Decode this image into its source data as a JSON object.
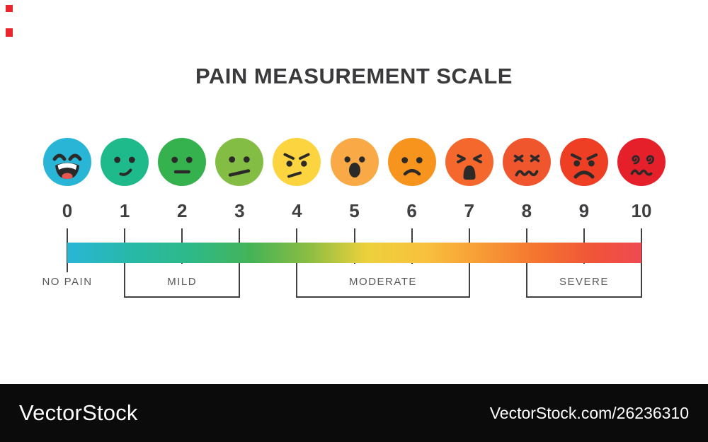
{
  "title": "PAIN MEASUREMENT SCALE",
  "scale": {
    "points": [
      {
        "value": "0",
        "color": "#29b6d6",
        "expression": "laughing"
      },
      {
        "value": "1",
        "color": "#1fba8c",
        "expression": "smirk"
      },
      {
        "value": "2",
        "color": "#35b14d",
        "expression": "neutral"
      },
      {
        "value": "3",
        "color": "#84bd44",
        "expression": "skeptical"
      },
      {
        "value": "4",
        "color": "#fbd440",
        "expression": "annoyed"
      },
      {
        "value": "5",
        "color": "#f9a945",
        "expression": "shocked"
      },
      {
        "value": "6",
        "color": "#f7941d",
        "expression": "sad"
      },
      {
        "value": "7",
        "color": "#f4682e",
        "expression": "wailing"
      },
      {
        "value": "8",
        "color": "#f0562d",
        "expression": "scrunched"
      },
      {
        "value": "9",
        "color": "#ee3f25",
        "expression": "angry"
      },
      {
        "value": "10",
        "color": "#e6202a",
        "expression": "dizzy"
      }
    ],
    "gradient_stops": [
      {
        "color": "#29b6d6",
        "at": "0%"
      },
      {
        "color": "#28b9a4",
        "at": "12%"
      },
      {
        "color": "#2eb987",
        "at": "22%"
      },
      {
        "color": "#45b356",
        "at": "32%"
      },
      {
        "color": "#8abd42",
        "at": "42%"
      },
      {
        "color": "#ecd13c",
        "at": "52%"
      },
      {
        "color": "#f8c23d",
        "at": "62%"
      },
      {
        "color": "#f89c36",
        "at": "72%"
      },
      {
        "color": "#f4742f",
        "at": "82%"
      },
      {
        "color": "#f05339",
        "at": "92%"
      },
      {
        "color": "#ee4a53",
        "at": "100%"
      }
    ],
    "ranges": [
      {
        "label": "NO PAIN",
        "from": 0,
        "to": 0
      },
      {
        "label": "MILD",
        "from": 1,
        "to": 3
      },
      {
        "label": "MODERATE",
        "from": 4,
        "to": 7
      },
      {
        "label": "SEVERE",
        "from": 8,
        "to": 10
      }
    ],
    "feature_color": "#2b2a28",
    "tongue_color": "#e85750",
    "teeth_color": "#ffffff"
  },
  "watermark": {
    "brand": "VectorStock",
    "url": "VectorStock.com/26236310"
  }
}
